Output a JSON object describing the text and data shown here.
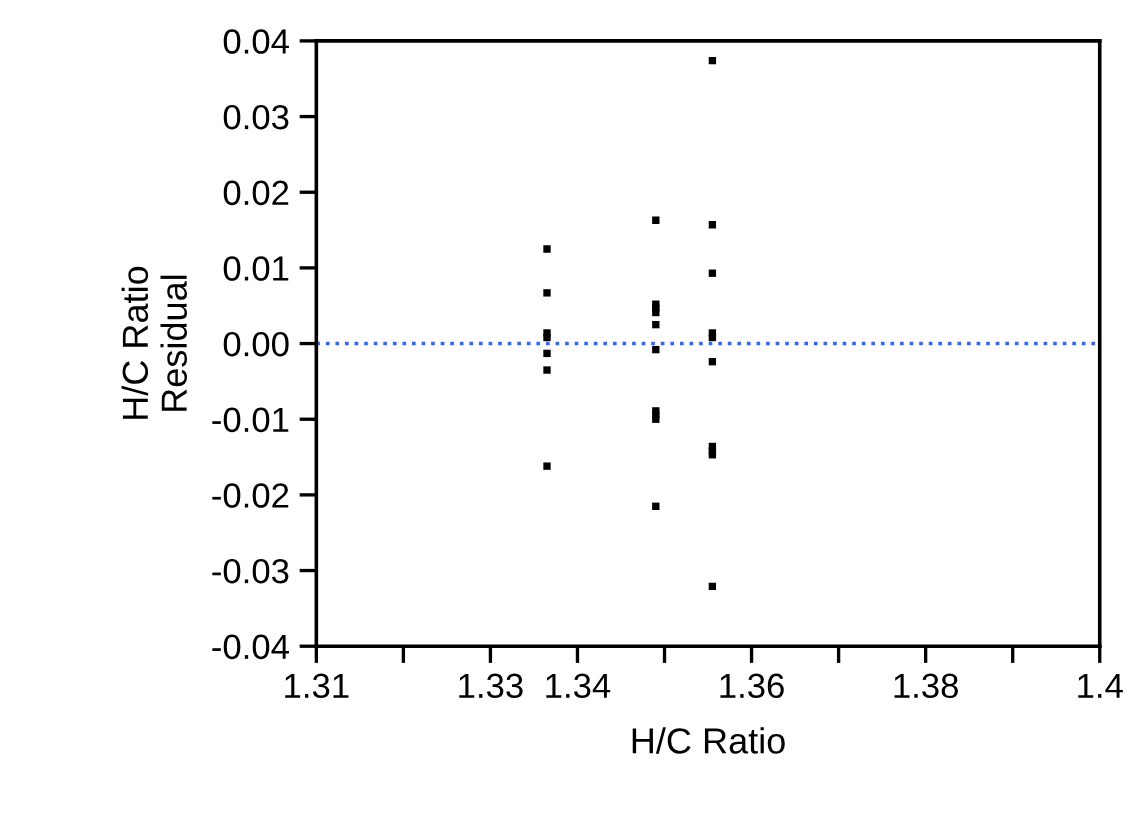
{
  "chart_data": {
    "type": "scatter",
    "xlabel": "H/C Ratio",
    "ylabel": "H/C Ratio\nResidual",
    "series": [
      {
        "color": "#000000",
        "x": [
          1.3365,
          1.3365,
          1.3365,
          1.3365,
          1.3365,
          1.3365,
          1.3365,
          1.349,
          1.349,
          1.349,
          1.349,
          1.349,
          1.349,
          1.349,
          1.349,
          1.349,
          1.349,
          1.3555,
          1.3555,
          1.3555,
          1.3555,
          1.3555,
          1.3555,
          1.3555,
          1.3555,
          1.3555,
          1.3555
        ],
        "values": [
          0.0125,
          0.0067,
          0.0014,
          0.0008,
          -0.0013,
          -0.0035,
          -0.0162,
          0.0163,
          0.0052,
          0.0047,
          0.0041,
          0.0025,
          -0.0008,
          -0.0089,
          -0.0094,
          -0.01,
          -0.0215,
          0.0374,
          0.0157,
          0.0093,
          0.0014,
          0.0008,
          -0.0024,
          -0.0136,
          -0.0142,
          -0.0147,
          -0.0321
        ]
      }
    ],
    "marker": "square",
    "xlim": [
      1.31,
      1.4
    ],
    "xticks": [
      1.31,
      {
        "value": 1.32,
        "label": null
      },
      1.33,
      1.34,
      {
        "value": 1.35,
        "label": null
      },
      1.36,
      {
        "value": 1.37,
        "label": null
      },
      1.38,
      {
        "value": 1.39,
        "label": null
      },
      1.4
    ],
    "ylim": [
      -0.04,
      0.04
    ],
    "yticks": [
      -0.04,
      -0.03,
      -0.02,
      -0.01,
      {
        "value": 0,
        "label": "0.00"
      },
      0.01,
      0.02,
      0.03,
      0.04
    ],
    "ref_lines": [
      {
        "axis": "y",
        "value": 0,
        "color": "#3366ff",
        "line_style": "dotted"
      }
    ],
    "grid": false,
    "legend": false
  }
}
